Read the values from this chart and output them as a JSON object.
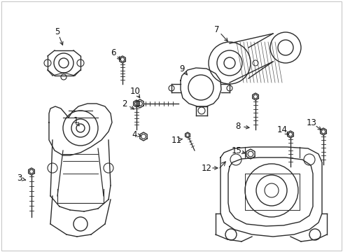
{
  "background_color": "#ffffff",
  "fig_width": 4.9,
  "fig_height": 3.6,
  "dpi": 100,
  "line_color": "#2a2a2a",
  "line_width": 1.0,
  "label_fontsize": 8.5
}
